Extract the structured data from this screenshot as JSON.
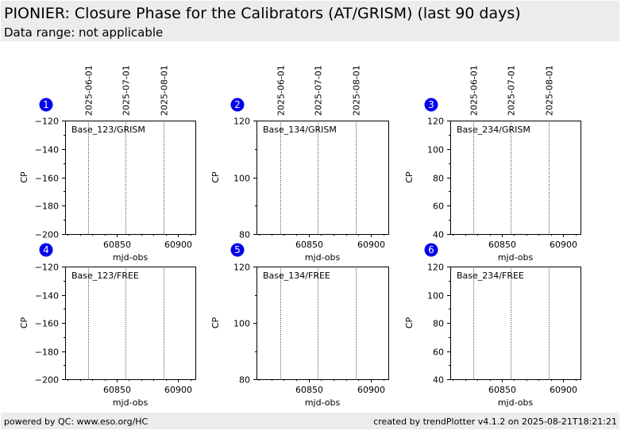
{
  "header": {
    "title": "PIONIER: Closure Phase for the Calibrators (AT/GRISM) (last 90 days)",
    "subtitle": "Data range: not applicable"
  },
  "footer": {
    "left": "powered by QC: www.eso.org/HC",
    "right": "created by trendPlotter v4.1.2 on 2025-08-21T18:21:21"
  },
  "colors": {
    "badge": "#0000ee",
    "header_bg": "#ececec"
  },
  "chart_data": [
    {
      "type": "scatter",
      "badge": "1",
      "label": "Base_123/GRISM",
      "xlabel": "mjd-obs",
      "ylabel": "CP",
      "xlim": [
        60808,
        60914
      ],
      "ylim": [
        -200,
        -120
      ],
      "xticks": [
        60850,
        60900
      ],
      "yticks": [
        -200,
        -180,
        -160,
        -140,
        -120
      ],
      "vlines": [
        {
          "x": 60827,
          "label": "2025-06-01"
        },
        {
          "x": 60857,
          "label": "2025-07-01"
        },
        {
          "x": 60888,
          "label": "2025-08-01"
        }
      ],
      "series": []
    },
    {
      "type": "scatter",
      "badge": "2",
      "label": "Base_134/GRISM",
      "xlabel": "mjd-obs",
      "ylabel": "CP",
      "xlim": [
        60808,
        60914
      ],
      "ylim": [
        80,
        120
      ],
      "xticks": [
        60850,
        60900
      ],
      "yticks": [
        80,
        100,
        120
      ],
      "vlines": [
        {
          "x": 60827,
          "label": "2025-06-01"
        },
        {
          "x": 60857,
          "label": "2025-07-01"
        },
        {
          "x": 60888,
          "label": "2025-08-01"
        }
      ],
      "series": []
    },
    {
      "type": "scatter",
      "badge": "3",
      "label": "Base_234/GRISM",
      "xlabel": "mjd-obs",
      "ylabel": "CP",
      "xlim": [
        60808,
        60914
      ],
      "ylim": [
        40,
        120
      ],
      "xticks": [
        60850,
        60900
      ],
      "yticks": [
        40,
        60,
        80,
        100,
        120
      ],
      "vlines": [
        {
          "x": 60827,
          "label": "2025-06-01"
        },
        {
          "x": 60857,
          "label": "2025-07-01"
        },
        {
          "x": 60888,
          "label": "2025-08-01"
        }
      ],
      "series": []
    },
    {
      "type": "scatter",
      "badge": "4",
      "label": "Base_123/FREE",
      "xlabel": "mjd-obs",
      "ylabel": "CP",
      "xlim": [
        60808,
        60914
      ],
      "ylim": [
        -200,
        -120
      ],
      "xticks": [
        60850,
        60900
      ],
      "yticks": [
        -200,
        -180,
        -160,
        -140,
        -120
      ],
      "vlines": [
        {
          "x": 60827,
          "label": ""
        },
        {
          "x": 60857,
          "label": ""
        },
        {
          "x": 60888,
          "label": ""
        }
      ],
      "series": []
    },
    {
      "type": "scatter",
      "badge": "5",
      "label": "Base_134/FREE",
      "xlabel": "mjd-obs",
      "ylabel": "CP",
      "xlim": [
        60808,
        60914
      ],
      "ylim": [
        80,
        120
      ],
      "xticks": [
        60850,
        60900
      ],
      "yticks": [
        80,
        100,
        120
      ],
      "vlines": [
        {
          "x": 60827,
          "label": ""
        },
        {
          "x": 60857,
          "label": ""
        },
        {
          "x": 60888,
          "label": ""
        }
      ],
      "series": []
    },
    {
      "type": "scatter",
      "badge": "6",
      "label": "Base_234/FREE",
      "xlabel": "mjd-obs",
      "ylabel": "CP",
      "xlim": [
        60808,
        60914
      ],
      "ylim": [
        40,
        120
      ],
      "xticks": [
        60850,
        60900
      ],
      "yticks": [
        40,
        60,
        80,
        100,
        120
      ],
      "vlines": [
        {
          "x": 60827,
          "label": ""
        },
        {
          "x": 60857,
          "label": ""
        },
        {
          "x": 60888,
          "label": ""
        }
      ],
      "series": []
    }
  ]
}
